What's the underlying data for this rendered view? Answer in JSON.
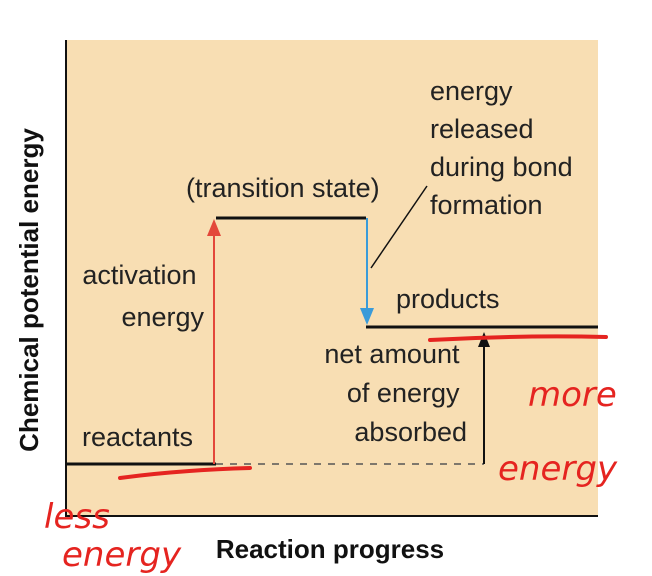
{
  "axes": {
    "ylabel": "Chemical potential energy",
    "xlabel": "Reaction progress"
  },
  "levels": {
    "reactants": "reactants",
    "transition_state": "(transition state)",
    "products": "products"
  },
  "annotations": {
    "activation_energy": [
      "activation",
      "energy"
    ],
    "energy_released": [
      "energy",
      "released",
      "during bond",
      "formation"
    ],
    "net_absorbed": [
      "net amount",
      "of energy",
      "absorbed"
    ]
  },
  "handwritten": {
    "left": [
      "less",
      "energy"
    ],
    "right": [
      "more",
      "energy"
    ]
  },
  "colors": {
    "panel": "#f8deb3",
    "activation_arrow": "#e3473a",
    "release_arrow": "#3a9bd9",
    "ink": "#e52420"
  }
}
